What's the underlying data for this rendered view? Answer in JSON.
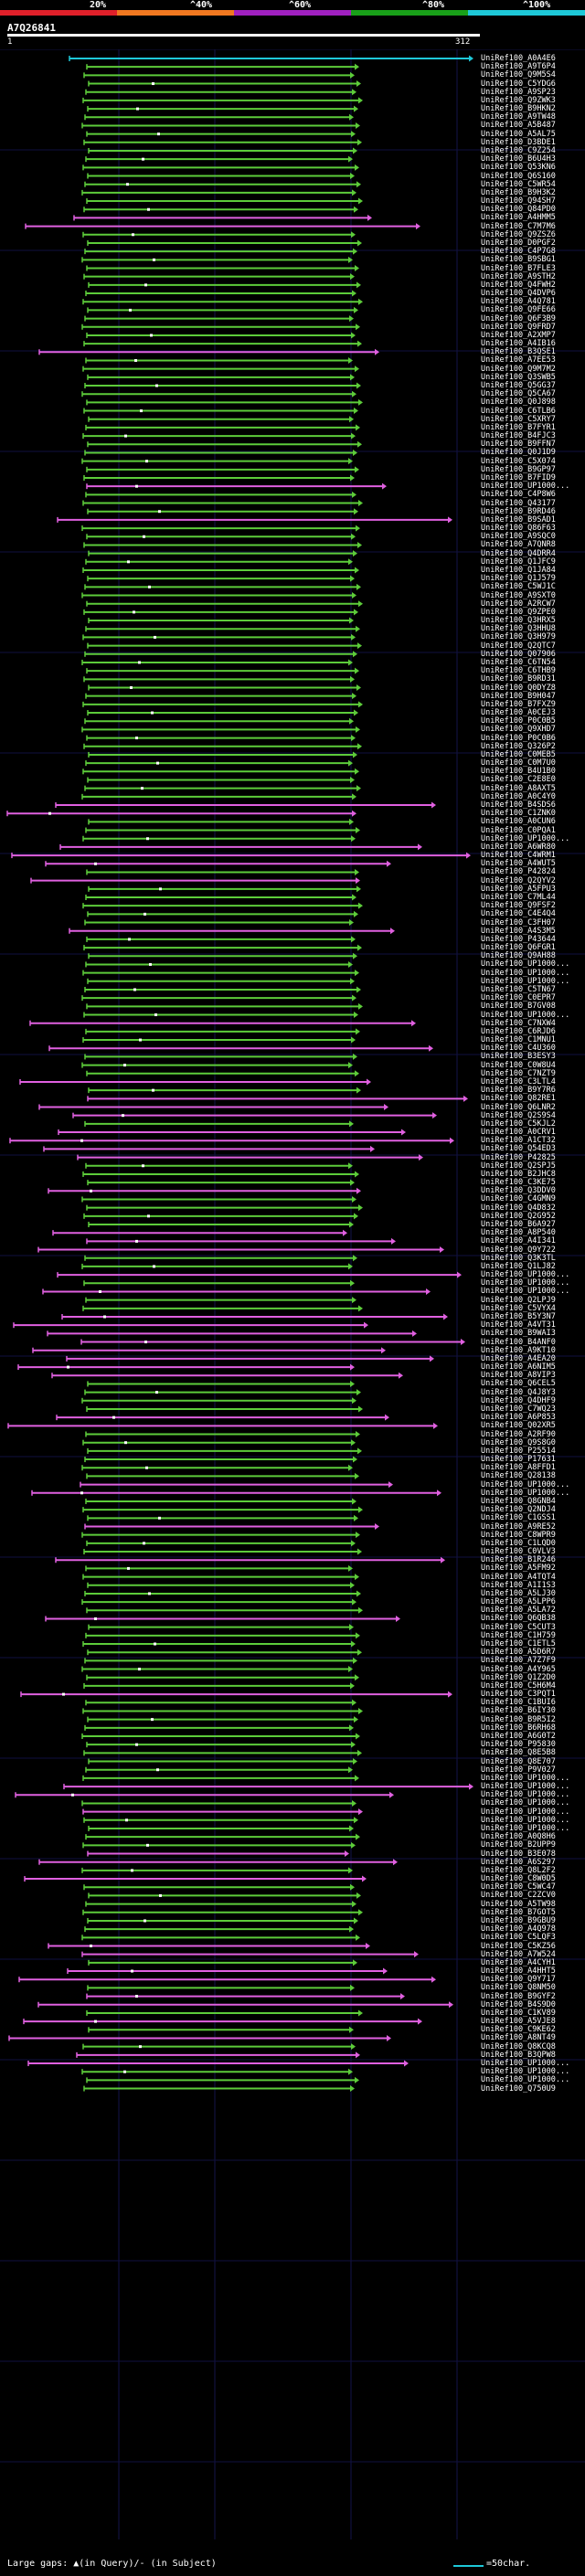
{
  "legend": {
    "labels": [
      "20%",
      "^40%",
      "^60%",
      "^80%",
      "^100%"
    ],
    "colors": [
      "#e0202a",
      "#f07820",
      "#a020c0",
      "#19a019",
      "#1ec8d8"
    ]
  },
  "query": {
    "id": "A7Q26841",
    "start": "1",
    "end": "312"
  },
  "colors": {
    "green": "#5dcc3a",
    "magenta": "#e060e0",
    "cyan": "#1ec8d8",
    "white": "#ffffff",
    "grid": "#1a1a5a"
  },
  "footer": {
    "left": "Large gaps: ▲(in Query)/- (in Subject)",
    "right": "=50char."
  },
  "hits": [
    "UniRef100_A0A4E6",
    "UniRef100_A9T6P4",
    "UniRef100_Q9M5S4",
    "UniRef100_C5YDG6",
    "UniRef100_A9SP23",
    "UniRef100_Q9ZWK3",
    "UniRef100_B9HKN2",
    "UniRef100_A9TW48",
    "UniRef100_A5B487",
    "UniRef100_A5AL75",
    "UniRef100_D3BDE1",
    "UniRef100_C9Z254",
    "UniRef100_B6U4H3",
    "UniRef100_Q53KN6",
    "UniRef100_Q6S160",
    "UniRef100_C5WR54",
    "UniRef100_B9H3K2",
    "UniRef100_Q94SH7",
    "UniRef100_Q84PD0",
    "UniRef100_A4HMM5",
    "UniRef100_C7M7M6",
    "UniRef100_Q9ZSZ6",
    "UniRef100_D0PGF2",
    "UniRef100_C4P7G8",
    "UniRef100_B9SBG1",
    "UniRef100_B7FLE3",
    "UniRef100_A9STH2",
    "UniRef100_Q4FWH2",
    "UniRef100_Q4DVP6",
    "UniRef100_A4Q781",
    "UniRef100_Q9FE66",
    "UniRef100_Q6F3B9",
    "UniRef100_Q9FRD7",
    "UniRef100_A2XMP7",
    "UniRef100_A4IB16",
    "UniRef100_B3QSE1",
    "UniRef100_A7EE53",
    "UniRef100_Q9M7M2",
    "UniRef100_Q3SWB5",
    "UniRef100_Q5GG37",
    "UniRef100_Q5CA67",
    "UniRef100_Q0J898",
    "UniRef100_C6TLB6",
    "UniRef100_C5XRY7",
    "UniRef100_B7FYR1",
    "UniRef100_B4FJC3",
    "UniRef100_B9FFN7",
    "UniRef100_Q0J1D9",
    "UniRef100_C5X074",
    "UniRef100_B9GP97",
    "UniRef100_B7FID9",
    "UniRef100_UP1000...",
    "UniRef100_C4P8W6",
    "UniRef100_Q43177",
    "UniRef100_B9RD46",
    "UniRef100_B9SAD1",
    "UniRef100_Q86F63",
    "UniRef100_A9SQC0",
    "UniRef100_A7QNR8",
    "UniRef100_Q4DRR4",
    "UniRef100_Q1JFC9",
    "UniRef100_Q1JA84",
    "UniRef100_Q1J579",
    "UniRef100_C5WJ1C",
    "UniRef100_A9SXT0",
    "UniRef100_A2RCW7",
    "UniRef100_Q9ZPE0",
    "UniRef100_Q3HRX5",
    "UniRef100_Q3HHU8",
    "UniRef100_Q3H979",
    "UniRef100_Q2QTC7",
    "UniRef100_Q07906",
    "UniRef100_C6TN54",
    "UniRef100_C6THB9",
    "UniRef100_B9RD31",
    "UniRef100_Q0DYZ8",
    "UniRef100_B9H047",
    "UniRef100_B7FXZ9",
    "UniRef100_A0CEJ3",
    "UniRef100_P0C0B5",
    "UniRef100_Q9XHD7",
    "UniRef100_P0C0B6",
    "UniRef100_Q326P2",
    "UniRef100_C0MEB5",
    "UniRef100_C0M7U0",
    "UniRef100_B4U1B0",
    "UniRef100_C2E8E0",
    "UniRef100_A8AXT5",
    "UniRef100_A0C4Y0",
    "UniRef100_B4SDS6",
    "UniRef100_C1ZNK0",
    "UniRef100_A0CUN6",
    "UniRef100_C0PQA1",
    "UniRef100_UP1000...",
    "UniRef100_A6WR80",
    "UniRef100_C4WRM1",
    "UniRef100_A4WUT5",
    "UniRef100_P42824",
    "UniRef100_Q2QYV2",
    "UniRef100_A5FPU3",
    "UniRef100_C7ML44",
    "UniRef100_Q9FSF2",
    "UniRef100_C4E4Q4",
    "UniRef100_C3FH07",
    "UniRef100_A4S3M5",
    "UniRef100_P43644",
    "UniRef100_Q6FGR1",
    "UniRef100_Q9AH88",
    "UniRef100_UP1000...",
    "UniRef100_UP1000...",
    "UniRef100_UP1000...",
    "UniRef100_C5TN67",
    "UniRef100_C0EPR7",
    "UniRef100_B7GV08",
    "UniRef100_UP1000...",
    "UniRef100_C7NXW4",
    "UniRef100_C6RJD6",
    "UniRef100_C1MNU1",
    "UniRef100_C4U360",
    "UniRef100_B3ESY3",
    "UniRef100_C0W8U4",
    "UniRef100_C7NZT9",
    "UniRef100_C3LTL4",
    "UniRef100_B9Y7R6",
    "UniRef100_Q82RE1",
    "UniRef100_Q6LNR2",
    "UniRef100_Q2S9S4",
    "UniRef100_C5KJL2",
    "UniRef100_A0CRV1",
    "UniRef100_A1CT32",
    "UniRef100_Q54ED3",
    "UniRef100_P42825",
    "UniRef100_Q2SPJ5",
    "UniRef100_B2JHC8",
    "UniRef100_C3KE75",
    "UniRef100_Q3DDV0",
    "UniRef100_C4GMN9",
    "UniRef100_Q4D832",
    "UniRef100_Q2G952",
    "UniRef100_B6A927",
    "UniRef100_A8P540",
    "UniRef100_A4I341",
    "UniRef100_Q9Y722",
    "UniRef100_Q3K3TL",
    "UniRef100_Q1LJ82",
    "UniRef100_UP1000...",
    "UniRef100_UP1000...",
    "UniRef100_UP1000...",
    "UniRef100_Q2LPJ9",
    "UniRef100_C5VYX4",
    "UniRef100_B5Y3N7",
    "UniRef100_A4VT31",
    "UniRef100_B9WAI3",
    "UniRef100_B4ANF0",
    "UniRef100_A9KT10",
    "UniRef100_A4EA20",
    "UniRef100_A6NIM5",
    "UniRef100_A8VIP3",
    "UniRef100_Q6CEL5",
    "UniRef100_Q4J8Y3",
    "UniRef100_Q4DHF9",
    "UniRef100_C7WQ23",
    "UniRef100_A6P853",
    "UniRef100_Q02XR5",
    "UniRef100_A2RF90",
    "UniRef100_Q9S8G0",
    "UniRef100_P25514",
    "UniRef100_P17631",
    "UniRef100_A8FFD1",
    "UniRef100_Q28138",
    "UniRef100_UP1000...",
    "UniRef100_UP1000...",
    "UniRef100_Q8GNB4",
    "UniRef100_Q2NDJ4",
    "UniRef100_C1GSS1",
    "UniRef100_A9RE52",
    "UniRef100_C8WPR9",
    "UniRef100_C1LQD0",
    "UniRef100_C0VLV3",
    "UniRef100_B1R246",
    "UniRef100_A5FM92",
    "UniRef100_A4TQT4",
    "UniRef100_A1I1S3",
    "UniRef100_A5LJ30",
    "UniRef100_A5LPP6",
    "UniRef100_A5LA72",
    "UniRef100_Q6QB38",
    "UniRef100_C5CUT3",
    "UniRef100_C1H759",
    "UniRef100_C1ETL5",
    "UniRef100_A5D6R7",
    "UniRef100_A7Z7F9",
    "UniRef100_A4Y965",
    "UniRef100_Q1Z2D0",
    "UniRef100_C5H6M4",
    "UniRef100_C3PQT1",
    "UniRef100_C1BUI6",
    "UniRef100_B6IY30",
    "UniRef100_B9R5I2",
    "UniRef100_B6RH68",
    "UniRef100_A6G0T2",
    "UniRef100_P95830",
    "UniRef100_Q8E5B8",
    "UniRef100_Q8E707",
    "UniRef100_P9V027",
    "UniRef100_UP1000...",
    "UniRef100_UP1000...",
    "UniRef100_UP1000...",
    "UniRef100_UP1000...",
    "UniRef100_UP1000...",
    "UniRef100_UP1000...",
    "UniRef100_UP1000...",
    "UniRef100_A0Q8H6",
    "UniRef100_B2UPP9",
    "UniRef100_B3E078",
    "UniRef100_A6S297",
    "UniRef100_Q8L2F2",
    "UniRef100_C8W0D5",
    "UniRef100_C5WC47",
    "UniRef100_C2ZCV0",
    "UniRef100_A5TW98",
    "UniRef100_B7GOT5",
    "UniRef100_B9GBU9",
    "UniRef100_A4Q978",
    "UniRef100_C5LQF3",
    "UniRef100_C5KZ56",
    "UniRef100_A7W524",
    "UniRef100_A4CYH1",
    "UniRef100_A4HHT5",
    "UniRef100_Q9Y717",
    "UniRef100_Q8NM50",
    "UniRef100_B9GYF2",
    "UniRef100_B4S9D0",
    "UniRef100_C1KV89",
    "UniRef100_A5VJE8",
    "UniRef100_C9KE62",
    "UniRef100_A8NT49",
    "UniRef100_Q8KCQ8",
    "UniRef100_B3QPW8",
    "UniRef100_UP1000...",
    "UniRef100_UP1000...",
    "UniRef100_UP1000...",
    "UniRef100_Q750U9"
  ]
}
